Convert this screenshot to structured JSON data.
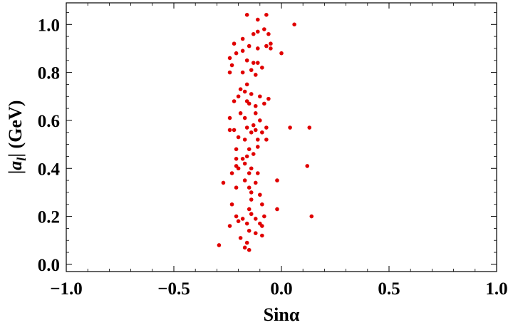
{
  "chart_data": {
    "type": "scatter",
    "title": "",
    "xlabel": "Sinα",
    "ylabel": "|a_l| (GeV)",
    "xlim": [
      -1.0,
      1.0
    ],
    "ylim": [
      -0.03,
      1.09
    ],
    "x_ticks": [
      -1.0,
      -0.5,
      0.0,
      0.5,
      1.0
    ],
    "x_tick_labels": [
      "−1.0",
      "−0.5",
      "0.0",
      "0.5",
      "1.0"
    ],
    "y_ticks": [
      0.0,
      0.2,
      0.4,
      0.6,
      0.8,
      1.0
    ],
    "y_tick_labels": [
      "0.0",
      "0.2",
      "0.4",
      "0.6",
      "0.8",
      "1.0"
    ],
    "grid": false,
    "legend": "none",
    "marker_color": "#e00000",
    "series": [
      {
        "points": [
          [
            -0.16,
            1.04
          ],
          [
            -0.07,
            1.04
          ],
          [
            0.06,
            1.0
          ],
          [
            -0.11,
            1.02
          ],
          [
            -0.08,
            0.98
          ],
          [
            -0.13,
            0.96
          ],
          [
            -0.11,
            0.97
          ],
          [
            -0.06,
            0.96
          ],
          [
            -0.18,
            0.94
          ],
          [
            -0.22,
            0.92
          ],
          [
            -0.15,
            0.91
          ],
          [
            -0.21,
            0.88
          ],
          [
            -0.18,
            0.89
          ],
          [
            -0.07,
            0.91
          ],
          [
            -0.05,
            0.92
          ],
          [
            -0.05,
            0.9
          ],
          [
            -0.11,
            0.9
          ],
          [
            0.0,
            0.88
          ],
          [
            -0.24,
            0.86
          ],
          [
            -0.16,
            0.85
          ],
          [
            -0.13,
            0.84
          ],
          [
            -0.23,
            0.83
          ],
          [
            -0.11,
            0.84
          ],
          [
            -0.24,
            0.8
          ],
          [
            -0.18,
            0.8
          ],
          [
            -0.14,
            0.81
          ],
          [
            -0.09,
            0.82
          ],
          [
            -0.12,
            0.79
          ],
          [
            -0.16,
            0.75
          ],
          [
            -0.19,
            0.73
          ],
          [
            -0.2,
            0.7
          ],
          [
            -0.17,
            0.72
          ],
          [
            -0.14,
            0.71
          ],
          [
            -0.1,
            0.7
          ],
          [
            -0.06,
            0.69
          ],
          [
            -0.22,
            0.68
          ],
          [
            -0.16,
            0.68
          ],
          [
            -0.15,
            0.67
          ],
          [
            -0.12,
            0.66
          ],
          [
            -0.08,
            0.67
          ],
          [
            -0.19,
            0.63
          ],
          [
            -0.12,
            0.63
          ],
          [
            -0.24,
            0.61
          ],
          [
            -0.17,
            0.61
          ],
          [
            -0.1,
            0.6
          ],
          [
            -0.13,
            0.58
          ],
          [
            -0.16,
            0.57
          ],
          [
            -0.22,
            0.56
          ],
          [
            -0.24,
            0.56
          ],
          [
            -0.12,
            0.56
          ],
          [
            -0.07,
            0.57
          ],
          [
            -0.14,
            0.55
          ],
          [
            -0.09,
            0.55
          ],
          [
            -0.2,
            0.53
          ],
          [
            -0.11,
            0.52
          ],
          [
            -0.17,
            0.52
          ],
          [
            -0.07,
            0.52
          ],
          [
            0.04,
            0.57
          ],
          [
            0.13,
            0.57
          ],
          [
            -0.21,
            0.48
          ],
          [
            -0.15,
            0.48
          ],
          [
            -0.11,
            0.49
          ],
          [
            -0.13,
            0.46
          ],
          [
            -0.21,
            0.44
          ],
          [
            -0.18,
            0.44
          ],
          [
            -0.16,
            0.45
          ],
          [
            -0.17,
            0.42
          ],
          [
            -0.21,
            0.41
          ],
          [
            -0.2,
            0.4
          ],
          [
            -0.14,
            0.4
          ],
          [
            -0.23,
            0.38
          ],
          [
            -0.15,
            0.38
          ],
          [
            -0.11,
            0.38
          ],
          [
            -0.17,
            0.35
          ],
          [
            -0.27,
            0.34
          ],
          [
            -0.12,
            0.34
          ],
          [
            -0.02,
            0.35
          ],
          [
            -0.21,
            0.32
          ],
          [
            -0.15,
            0.32
          ],
          [
            -0.14,
            0.3
          ],
          [
            -0.1,
            0.29
          ],
          [
            0.12,
            0.41
          ],
          [
            -0.14,
            0.27
          ],
          [
            -0.23,
            0.25
          ],
          [
            -0.09,
            0.25
          ],
          [
            -0.15,
            0.23
          ],
          [
            -0.02,
            0.23
          ],
          [
            -0.14,
            0.21
          ],
          [
            -0.21,
            0.2
          ],
          [
            -0.18,
            0.19
          ],
          [
            -0.12,
            0.19
          ],
          [
            -0.08,
            0.2
          ],
          [
            -0.16,
            0.17
          ],
          [
            -0.1,
            0.17
          ],
          [
            -0.09,
            0.16
          ],
          [
            -0.24,
            0.16
          ],
          [
            -0.2,
            0.18
          ],
          [
            -0.15,
            0.14
          ],
          [
            -0.12,
            0.13
          ],
          [
            0.14,
            0.2
          ],
          [
            -0.19,
            0.11
          ],
          [
            -0.09,
            0.12
          ],
          [
            -0.16,
            0.09
          ],
          [
            -0.29,
            0.08
          ],
          [
            -0.17,
            0.07
          ],
          [
            -0.15,
            0.06
          ]
        ]
      }
    ]
  }
}
